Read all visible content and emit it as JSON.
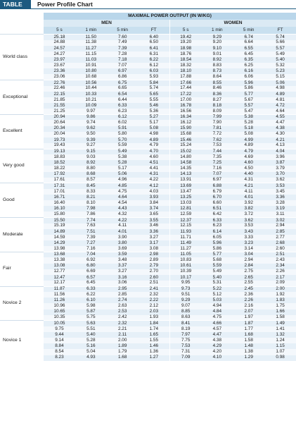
{
  "table_label": "TABLE 4.1",
  "title": "Power Profile Chart",
  "super_header": "MAXIMAL POWER OUTPUT (IN W/KG)",
  "men_header": "MEN",
  "women_header": "WOMEN",
  "columns": [
    "5 s",
    "1 min",
    "5 min",
    "FT",
    "5 s",
    "1 min",
    "5 min",
    "FT"
  ],
  "groups": [
    {
      "label": "World class",
      "rows": [
        [
          "25.18",
          "11.50",
          "7.60",
          "6.40",
          "19.42",
          "9.29",
          "6.74",
          "5.74"
        ],
        [
          "24.88",
          "11.38",
          "7.49",
          "6.50",
          "19.20",
          "9.20",
          "6.64",
          "5.66"
        ],
        [
          "24.57",
          "11.27",
          "7.39",
          "6.41",
          "18.98",
          "9.10",
          "6.55",
          "5.57"
        ],
        [
          "24.27",
          "11.15",
          "7.28",
          "6.31",
          "18.76",
          "9.01",
          "6.45",
          "5.49"
        ],
        [
          "23.97",
          "11.03",
          "7.18",
          "6.22",
          "18.54",
          "8.92",
          "6.35",
          "5.40"
        ],
        [
          "23.67",
          "10.91",
          "7.07",
          "6.12",
          "18.32",
          "8.83",
          "6.25",
          "5.32"
        ],
        [
          "23.36",
          "10.80",
          "6.97",
          "6.03",
          "18.10",
          "8.73",
          "6.16",
          "5.23"
        ],
        [
          "23.06",
          "10.68",
          "6.86",
          "5.93",
          "17.88",
          "8.64",
          "6.06",
          "5.15"
        ]
      ]
    },
    {
      "label": "Exceptional",
      "rows": [
        [
          "22.76",
          "10.56",
          "6.75",
          "5.84",
          "17.66",
          "8.55",
          "5.96",
          "5.06"
        ],
        [
          "22.46",
          "10.44",
          "6.65",
          "5.74",
          "17.44",
          "8.46",
          "5.86",
          "4.98"
        ],
        [
          "22.15",
          "10.33",
          "6.54",
          "5.65",
          "17.22",
          "8.36",
          "5.77",
          "4.89"
        ],
        [
          "21.85",
          "10.21",
          "6.44",
          "5.55",
          "17.00",
          "8.27",
          "5.67",
          "4.81"
        ],
        [
          "21.55",
          "10.09",
          "6.33",
          "5.46",
          "16.78",
          "8.18",
          "5.57",
          "4.72"
        ],
        [
          "21.25",
          "9.97",
          "6.23",
          "5.36",
          "16.56",
          "8.09",
          "5.47",
          "4.64"
        ]
      ]
    },
    {
      "label": "Excellent",
      "rows": [
        [
          "20.94",
          "9.86",
          "6.12",
          "5.27",
          "16.34",
          "7.99",
          "5.38",
          "4.55"
        ],
        [
          "20.64",
          "9.74",
          "6.02",
          "5.17",
          "16.12",
          "7.90",
          "5.28",
          "4.47"
        ],
        [
          "20.34",
          "9.62",
          "5.91",
          "5.08",
          "15.90",
          "7.81",
          "5.18",
          "4.38"
        ],
        [
          "20.04",
          "9.50",
          "5.80",
          "4.98",
          "15.68",
          "7.72",
          "5.08",
          "4.30"
        ],
        [
          "19.73",
          "9.39",
          "5.70",
          "4.89",
          "15.46",
          "7.62",
          "4.99",
          "4.21"
        ],
        [
          "19.43",
          "9.27",
          "5.59",
          "4.79",
          "15.24",
          "7.53",
          "4.89",
          "4.13"
        ]
      ]
    },
    {
      "label": "Very good",
      "rows": [
        [
          "19.13",
          "9.15",
          "5.49",
          "4.70",
          "15.02",
          "7.44",
          "4.79",
          "4.04"
        ],
        [
          "18.83",
          "9.03",
          "5.38",
          "4.60",
          "14.80",
          "7.35",
          "4.69",
          "3.96"
        ],
        [
          "18.52",
          "8.92",
          "5.28",
          "4.51",
          "14.58",
          "7.25",
          "4.60",
          "3.87"
        ],
        [
          "18.22",
          "8.80",
          "5.17",
          "4.41",
          "14.35",
          "7.16",
          "4.50",
          "3.79"
        ],
        [
          "17.92",
          "8.68",
          "5.06",
          "4.31",
          "14.13",
          "7.07",
          "4.40",
          "3.70"
        ],
        [
          "17.61",
          "8.57",
          "4.96",
          "4.22",
          "13.91",
          "6.97",
          "4.31",
          "3.62"
        ]
      ]
    },
    {
      "label": "Good",
      "rows": [
        [
          "17.31",
          "8.45",
          "4.85",
          "4.12",
          "13.69",
          "6.88",
          "4.21",
          "3.53"
        ],
        [
          "17.01",
          "8.33",
          "4.75",
          "4.03",
          "13.47",
          "6.79",
          "4.11",
          "3.45"
        ],
        [
          "16.71",
          "8.21",
          "4.64",
          "3.93",
          "13.25",
          "6.70",
          "4.01",
          "3.36"
        ],
        [
          "16.40",
          "8.10",
          "4.54",
          "3.84",
          "13.03",
          "6.60",
          "3.92",
          "3.28"
        ],
        [
          "16.10",
          "7.98",
          "4.43",
          "3.74",
          "12.81",
          "6.51",
          "3.82",
          "3.19"
        ],
        [
          "15.80",
          "7.86",
          "4.32",
          "3.65",
          "12.59",
          "6.42",
          "3.72",
          "3.11"
        ]
      ]
    },
    {
      "label": "Moderate",
      "rows": [
        [
          "15.50",
          "7.74",
          "4.22",
          "3.55",
          "12.37",
          "6.33",
          "3.62",
          "3.02"
        ],
        [
          "15.19",
          "7.63",
          "4.11",
          "3.46",
          "12.15",
          "6.23",
          "3.53",
          "2.94"
        ],
        [
          "14.89",
          "7.51",
          "4.01",
          "3.36",
          "11.93",
          "6.14",
          "3.43",
          "2.85"
        ],
        [
          "14.59",
          "7.39",
          "3.90",
          "3.27",
          "11.71",
          "6.05",
          "3.33",
          "2.77"
        ],
        [
          "14.29",
          "7.27",
          "3.80",
          "3.17",
          "11.49",
          "5.96",
          "3.23",
          "2.68"
        ],
        [
          "13.98",
          "7.16",
          "3.69",
          "3.08",
          "11.27",
          "5.86",
          "3.14",
          "2.60"
        ]
      ]
    },
    {
      "label": "Fair",
      "rows": [
        [
          "13.68",
          "7.04",
          "3.59",
          "2.98",
          "11.05",
          "5.77",
          "3.04",
          "2.51"
        ],
        [
          "13.38",
          "6.92",
          "3.48",
          "2.89",
          "10.83",
          "5.68",
          "2.94",
          "2.43"
        ],
        [
          "13.08",
          "6.80",
          "3.37",
          "2.79",
          "10.61",
          "5.59",
          "2.84",
          "2.34"
        ],
        [
          "12.77",
          "6.69",
          "3.27",
          "2.70",
          "10.39",
          "5.49",
          "2.75",
          "2.26"
        ],
        [
          "12.47",
          "6.57",
          "3.16",
          "2.60",
          "10.17",
          "5.40",
          "2.65",
          "2.17"
        ],
        [
          "12.17",
          "6.45",
          "3.06",
          "2.51",
          "9.95",
          "5.31",
          "2.55",
          "2.09"
        ]
      ]
    },
    {
      "label": "Novice 2",
      "rows": [
        [
          "11.87",
          "6.33",
          "2.95",
          "2.41",
          "9.73",
          "5.22",
          "2.45",
          "2.00"
        ],
        [
          "11.56",
          "6.22",
          "2.85",
          "2.32",
          "9.51",
          "5.12",
          "2.36",
          "1.92"
        ],
        [
          "11.26",
          "6.10",
          "2.74",
          "2.22",
          "9.29",
          "5.03",
          "2.26",
          "1.83"
        ],
        [
          "10.96",
          "5.98",
          "2.63",
          "2.12",
          "9.07",
          "4.94",
          "2.16",
          "1.75"
        ],
        [
          "10.65",
          "5.87",
          "2.53",
          "2.03",
          "8.85",
          "4.84",
          "2.07",
          "1.66"
        ],
        [
          "10.35",
          "5.75",
          "2.42",
          "1.93",
          "8.63",
          "4.75",
          "1.97",
          "1.58"
        ]
      ]
    },
    {
      "label": "Novice 1",
      "rows": [
        [
          "10.05",
          "5.63",
          "2.32",
          "1.84",
          "8.41",
          "4.66",
          "1.87",
          "1.49"
        ],
        [
          "9.75",
          "5.51",
          "2.21",
          "1.74",
          "8.19",
          "4.57",
          "1.77",
          "1.41"
        ],
        [
          "9.44",
          "5.40",
          "2.11",
          "1.65",
          "7.97",
          "4.47",
          "1.68",
          "1.32"
        ],
        [
          "9.14",
          "5.28",
          "2.00",
          "1.55",
          "7.75",
          "4.38",
          "1.58",
          "1.24"
        ],
        [
          "8.84",
          "5.16",
          "1.89",
          "1.46",
          "7.53",
          "4.29",
          "1.48",
          "1.15"
        ],
        [
          "8.54",
          "5.04",
          "1.79",
          "1.36",
          "7.31",
          "4.20",
          "1.38",
          "1.07"
        ],
        [
          "8.23",
          "4.93",
          "1.68",
          "1.27",
          "7.09",
          "4.10",
          "1.29",
          "0.98"
        ]
      ]
    }
  ]
}
